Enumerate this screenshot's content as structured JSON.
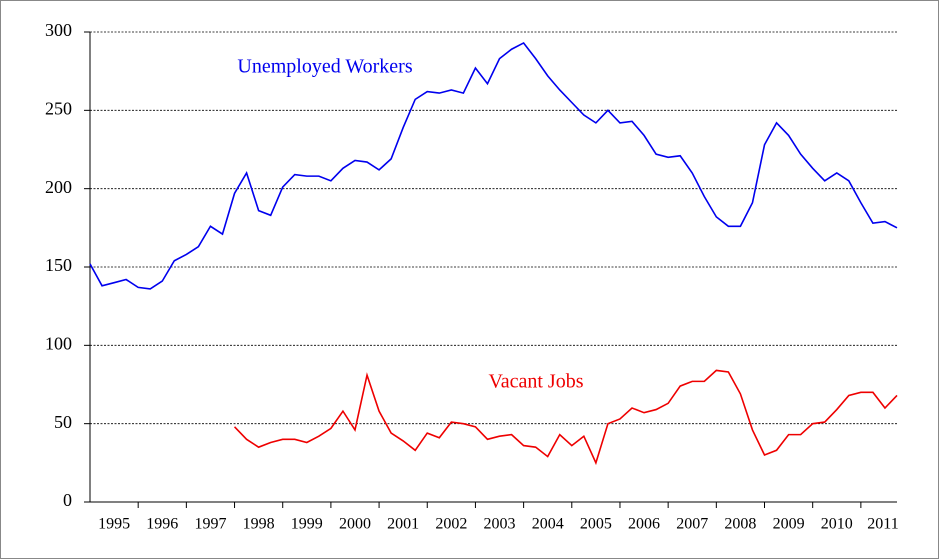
{
  "chart_data": {
    "type": "line",
    "categories": [
      "1995",
      null,
      null,
      null,
      "1996",
      null,
      null,
      null,
      "1997",
      null,
      null,
      null,
      "1998",
      null,
      null,
      null,
      "1999",
      null,
      null,
      null,
      "2000",
      null,
      null,
      null,
      "2001",
      null,
      null,
      null,
      "2002",
      null,
      null,
      null,
      "2003",
      null,
      null,
      null,
      "2004",
      null,
      null,
      null,
      "2005",
      null,
      null,
      null,
      "2006",
      null,
      null,
      null,
      "2007",
      null,
      null,
      null,
      "2008",
      null,
      null,
      null,
      "2009",
      null,
      null,
      null,
      "2010",
      null,
      null,
      null,
      "2011",
      null,
      null,
      null
    ],
    "series": [
      {
        "name": "Unemployed Workers",
        "color": "#0000ee",
        "values": [
          152,
          138,
          140,
          142,
          137,
          136,
          141,
          154,
          158,
          163,
          176,
          171,
          197,
          210,
          186,
          183,
          201,
          209,
          208,
          208,
          205,
          213,
          218,
          217,
          212,
          219,
          239,
          257,
          262,
          261,
          263,
          261,
          277,
          267,
          283,
          289,
          293,
          283,
          272,
          263,
          255,
          247,
          242,
          250,
          242,
          243,
          234,
          222,
          220,
          221,
          210,
          195,
          182,
          176,
          176,
          191,
          228,
          242,
          234,
          222,
          213,
          205,
          210,
          205,
          191,
          178,
          179,
          175
        ]
      },
      {
        "name": "Vacant Jobs",
        "color": "#ee0000",
        "values": [
          null,
          null,
          null,
          null,
          null,
          null,
          null,
          null,
          null,
          null,
          null,
          null,
          48,
          40,
          35,
          38,
          40,
          40,
          38,
          42,
          47,
          58,
          46,
          81,
          58,
          44,
          39,
          33,
          44,
          41,
          51,
          50,
          48,
          40,
          42,
          43,
          36,
          35,
          29,
          43,
          36,
          42,
          25,
          50,
          53,
          60,
          57,
          59,
          63,
          74,
          77,
          77,
          84,
          83,
          69,
          46,
          30,
          33,
          43,
          43,
          50,
          51,
          59,
          68,
          70,
          70,
          60,
          68
        ]
      }
    ],
    "ylim": [
      0,
      300
    ],
    "yticks": [
      0,
      50,
      100,
      150,
      200,
      250,
      300
    ],
    "grid": true
  }
}
